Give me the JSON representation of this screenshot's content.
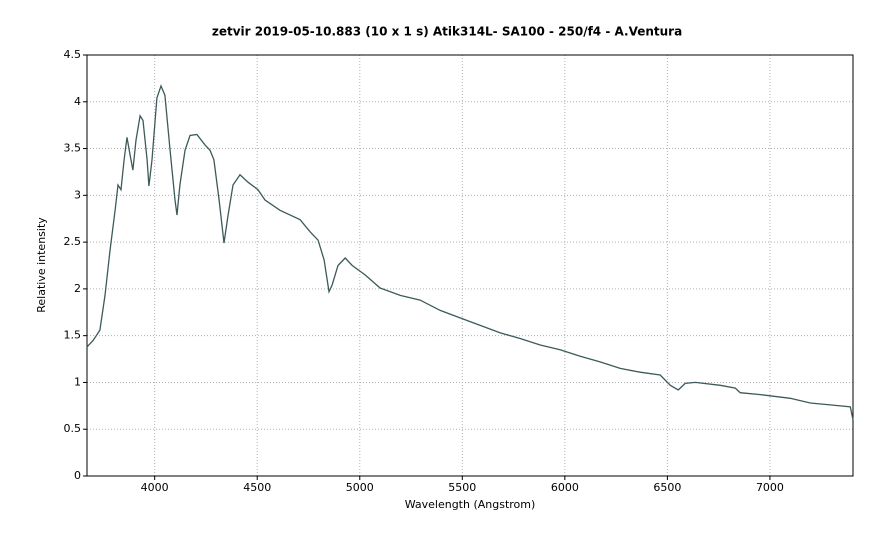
{
  "chart_data": {
    "type": "line",
    "title": "zetvir  2019-05-10.883   (10 x 1 s)  Atik314L- SA100 - 250/f4 - A.Ventura",
    "xlabel": "Wavelength (Angstrom)",
    "ylabel": "Relative intensity",
    "x": [
      3670,
      3700,
      3733,
      3758,
      3782,
      3807,
      3821,
      3836,
      3851,
      3865,
      3880,
      3894,
      3909,
      3929,
      3943,
      3963,
      3972,
      3987,
      4011,
      4031,
      4050,
      4075,
      4099,
      4109,
      4123,
      4148,
      4172,
      4206,
      4245,
      4270,
      4289,
      4314,
      4338,
      4358,
      4382,
      4416,
      4455,
      4504,
      4538,
      4611,
      4709,
      4758,
      4797,
      4826,
      4850,
      4865,
      4894,
      4929,
      4963,
      5026,
      5099,
      5197,
      5294,
      5392,
      5489,
      5587,
      5685,
      5782,
      5880,
      5977,
      6075,
      6172,
      6270,
      6367,
      6465,
      6514,
      6553,
      6587,
      6636,
      6758,
      6831,
      6855,
      6953,
      7099,
      7197,
      7294,
      7392,
      7405
    ],
    "series": [
      {
        "name": "zetvir",
        "color": "#3d5a5a",
        "values": [
          1.38,
          1.45,
          1.56,
          1.93,
          2.41,
          2.84,
          3.11,
          3.06,
          3.38,
          3.62,
          3.43,
          3.27,
          3.59,
          3.85,
          3.8,
          3.38,
          3.1,
          3.38,
          4.04,
          4.17,
          4.07,
          3.48,
          2.95,
          2.79,
          3.11,
          3.48,
          3.64,
          3.65,
          3.54,
          3.48,
          3.38,
          2.95,
          2.49,
          2.79,
          3.11,
          3.22,
          3.14,
          3.06,
          2.95,
          2.84,
          2.74,
          2.61,
          2.52,
          2.31,
          1.97,
          2.04,
          2.25,
          2.33,
          2.25,
          2.15,
          2.01,
          1.93,
          1.88,
          1.77,
          1.69,
          1.61,
          1.53,
          1.47,
          1.4,
          1.35,
          1.28,
          1.22,
          1.15,
          1.11,
          1.08,
          0.97,
          0.92,
          0.99,
          1.0,
          0.97,
          0.94,
          0.89,
          0.87,
          0.83,
          0.78,
          0.76,
          0.74,
          0.6
        ]
      }
    ],
    "xlim": [
      3670,
      7405
    ],
    "ylim": [
      0,
      4.5
    ],
    "xticks": [
      4000,
      4500,
      5000,
      5500,
      6000,
      6500,
      7000
    ],
    "yticks": [
      0,
      0.5,
      1,
      1.5,
      2,
      2.5,
      3,
      3.5,
      4,
      4.5
    ],
    "grid": true
  }
}
